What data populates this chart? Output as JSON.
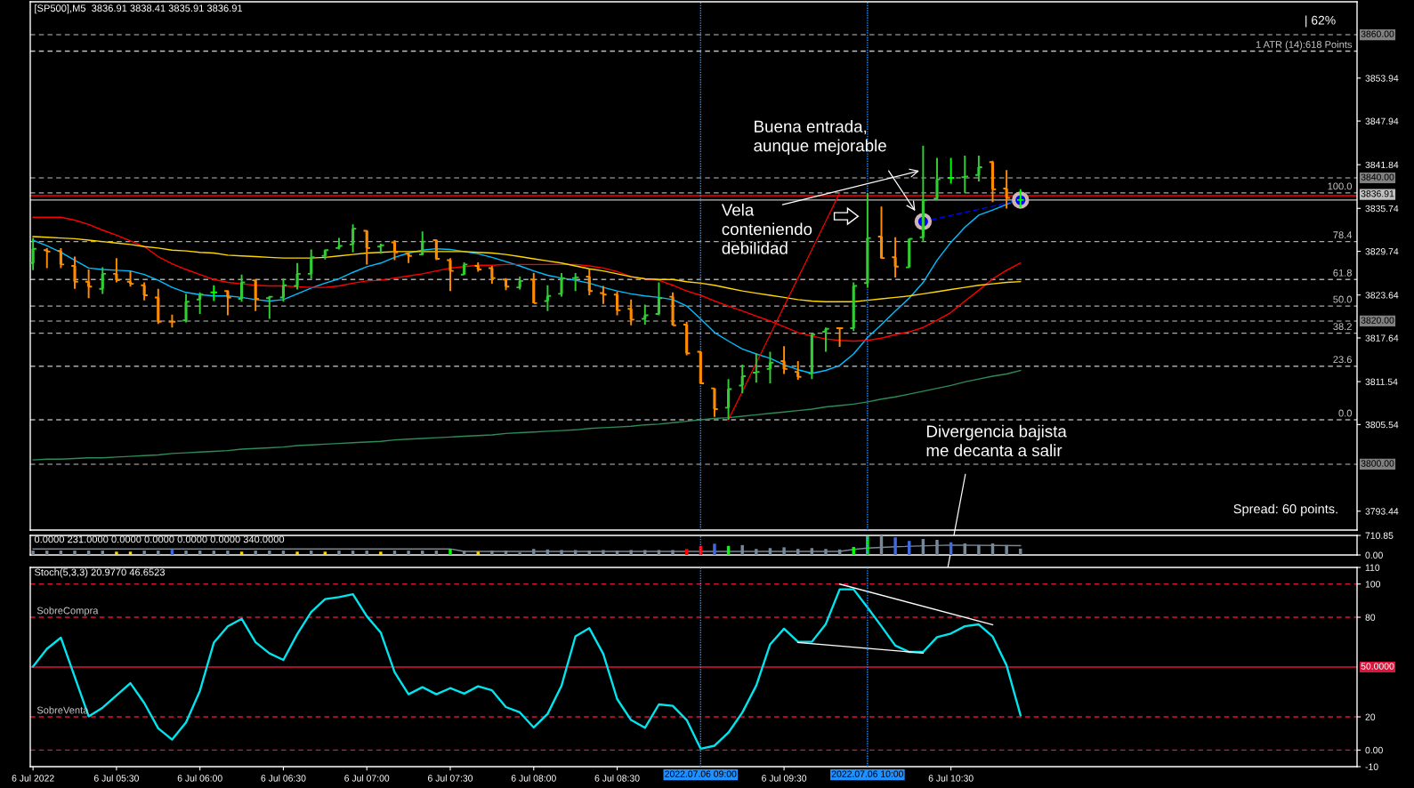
{
  "chart_data": [
    {
      "type": "candlestick",
      "title": "[SP500],M5  3836.91 3838.41 3835.91 3836.91",
      "x": [
        "2022-07-06T05:00",
        "2022-07-06T05:05",
        "2022-07-06T05:10",
        "2022-07-06T05:15",
        "2022-07-06T05:20",
        "2022-07-06T05:25",
        "2022-07-06T05:30",
        "2022-07-06T05:35",
        "2022-07-06T05:40",
        "2022-07-06T05:45",
        "2022-07-06T05:50",
        "2022-07-06T05:55",
        "2022-07-06T06:00",
        "2022-07-06T06:05",
        "2022-07-06T06:10",
        "2022-07-06T06:15",
        "2022-07-06T06:20",
        "2022-07-06T06:25",
        "2022-07-06T06:30",
        "2022-07-06T06:35",
        "2022-07-06T06:40",
        "2022-07-06T06:45",
        "2022-07-06T06:50",
        "2022-07-06T06:55",
        "2022-07-06T07:00",
        "2022-07-06T07:05",
        "2022-07-06T07:10",
        "2022-07-06T07:15",
        "2022-07-06T07:20",
        "2022-07-06T07:25",
        "2022-07-06T07:30",
        "2022-07-06T07:35",
        "2022-07-06T07:40",
        "2022-07-06T07:45",
        "2022-07-06T07:50",
        "2022-07-06T07:55",
        "2022-07-06T08:00",
        "2022-07-06T08:05",
        "2022-07-06T08:10",
        "2022-07-06T08:15",
        "2022-07-06T08:20",
        "2022-07-06T08:25",
        "2022-07-06T08:30",
        "2022-07-06T08:35",
        "2022-07-06T08:40",
        "2022-07-06T08:45",
        "2022-07-06T08:50",
        "2022-07-06T08:55",
        "2022-07-06T09:00",
        "2022-07-06T09:05",
        "2022-07-06T09:10",
        "2022-07-06T09:15",
        "2022-07-06T09:20",
        "2022-07-06T09:25",
        "2022-07-06T09:30",
        "2022-07-06T09:35",
        "2022-07-06T09:40",
        "2022-07-06T09:45",
        "2022-07-06T09:50",
        "2022-07-06T09:55",
        "2022-07-06T10:00",
        "2022-07-06T10:05",
        "2022-07-06T10:10",
        "2022-07-06T10:15",
        "2022-07-06T10:20",
        "2022-07-06T10:25",
        "2022-07-06T10:30",
        "2022-07-06T10:35",
        "2022-07-06T10:40",
        "2022-07-06T10:45",
        "2022-07-06T10:50",
        "2022-07-06T10:55"
      ],
      "ohlc": [
        [
          3828.1,
          3831.6,
          3827.1,
          3830.1
        ],
        [
          3829.9,
          3830.2,
          3827.4,
          3829.7
        ],
        [
          3829.8,
          3830.2,
          3827.4,
          3827.9
        ],
        [
          3827.7,
          3829.0,
          3824.5,
          3825.5
        ],
        [
          3825.5,
          3827.2,
          3823.2,
          3824.8
        ],
        [
          3824.5,
          3827.5,
          3823.8,
          3826.6
        ],
        [
          3826.6,
          3828.8,
          3825.4,
          3825.7
        ],
        [
          3825.5,
          3827.0,
          3824.8,
          3825.2
        ],
        [
          3825.0,
          3825.4,
          3822.9,
          3823.6
        ],
        [
          3823.3,
          3824.5,
          3819.6,
          3819.9
        ],
        [
          3819.9,
          3820.9,
          3819.1,
          3819.9
        ],
        [
          3820.1,
          3823.8,
          3819.8,
          3822.7
        ],
        [
          3823.0,
          3824.0,
          3821.0,
          3823.7
        ],
        [
          3824.0,
          3825.0,
          3822.8,
          3824.0
        ],
        [
          3824.2,
          3824.3,
          3820.8,
          3823.3
        ],
        [
          3823.1,
          3826.5,
          3822.7,
          3825.4
        ],
        [
          3825.7,
          3825.7,
          3821.4,
          3823.1
        ],
        [
          3823.2,
          3823.5,
          3820.3,
          3823.4
        ],
        [
          3823.3,
          3825.9,
          3822.7,
          3825.0
        ],
        [
          3824.9,
          3828.1,
          3824.4,
          3826.6
        ],
        [
          3826.6,
          3830.0,
          3825.9,
          3828.9
        ],
        [
          3829.1,
          3830.0,
          3828.6,
          3829.9
        ],
        [
          3830.2,
          3831.6,
          3830.0,
          3830.5
        ],
        [
          3830.7,
          3833.5,
          3829.6,
          3832.9
        ],
        [
          3832.6,
          3832.7,
          3827.9,
          3830.2
        ],
        [
          3830.4,
          3830.8,
          3829.4,
          3830.6
        ],
        [
          3831.0,
          3831.3,
          3828.5,
          3829.6
        ],
        [
          3829.4,
          3829.6,
          3828.1,
          3829.1
        ],
        [
          3829.3,
          3832.5,
          3829.2,
          3831.1
        ],
        [
          3831.3,
          3831.4,
          3828.5,
          3828.7
        ],
        [
          3828.5,
          3828.8,
          3824.2,
          3827.0
        ],
        [
          3826.5,
          3828.2,
          3826.5,
          3827.9
        ],
        [
          3827.7,
          3828.2,
          3826.9,
          3827.2
        ],
        [
          3827.4,
          3827.7,
          3825.2,
          3826.0
        ],
        [
          3825.8,
          3826.0,
          3824.3,
          3824.8
        ],
        [
          3824.7,
          3826.2,
          3824.4,
          3825.6
        ],
        [
          3825.8,
          3826.7,
          3822.5,
          3822.5
        ],
        [
          3822.8,
          3825.0,
          3821.4,
          3823.5
        ],
        [
          3823.8,
          3826.7,
          3823.4,
          3826.0
        ],
        [
          3826.0,
          3826.7,
          3824.2,
          3826.1
        ],
        [
          3826.2,
          3827.2,
          3823.6,
          3824.2
        ],
        [
          3823.9,
          3824.9,
          3822.4,
          3823.7
        ],
        [
          3823.7,
          3824.1,
          3820.8,
          3821.5
        ],
        [
          3821.7,
          3823.0,
          3819.4,
          3820.2
        ],
        [
          3820.3,
          3822.3,
          3819.5,
          3820.8
        ],
        [
          3821.0,
          3825.4,
          3820.8,
          3823.2
        ],
        [
          3823.4,
          3824.0,
          3819.4,
          3819.4
        ],
        [
          3819.5,
          3819.9,
          3815.2,
          3815.5
        ],
        [
          3815.7,
          3815.8,
          3811.2,
          3811.3
        ],
        [
          3810.6,
          3810.6,
          3806.6,
          3807.7
        ],
        [
          3807.9,
          3811.9,
          3806.2,
          3810.5
        ],
        [
          3811.0,
          3813.9,
          3809.9,
          3812.3
        ],
        [
          3812.8,
          3815.5,
          3811.4,
          3812.9
        ],
        [
          3813.3,
          3815.7,
          3811.3,
          3814.2
        ],
        [
          3814.4,
          3816.5,
          3812.6,
          3813.3
        ],
        [
          3812.9,
          3814.4,
          3811.8,
          3812.2
        ],
        [
          3812.7,
          3818.3,
          3811.9,
          3818.1
        ],
        [
          3818.5,
          3819.1,
          3815.7,
          3818.9
        ],
        [
          3819.0,
          3819.0,
          3816.4,
          3819.0
        ],
        [
          3819.0,
          3825.4,
          3818.6,
          3824.9
        ],
        [
          3825.3,
          3837.9,
          3824.7,
          3831.6
        ],
        [
          3831.8,
          3836.0,
          3828.7,
          3828.8
        ],
        [
          3828.9,
          3831.7,
          3826.1,
          3827.6
        ],
        [
          3827.5,
          3831.5,
          3827.5,
          3831.5
        ],
        [
          3831.7,
          3844.5,
          3831.1,
          3836.9
        ],
        [
          3837.1,
          3842.8,
          3836.9,
          3839.8
        ],
        [
          3840.0,
          3842.8,
          3839.2,
          3840.0
        ],
        [
          3840.1,
          3843.1,
          3837.9,
          3840.2
        ],
        [
          3840.4,
          3843.1,
          3839.5,
          3841.5
        ],
        [
          3842.2,
          3842.4,
          3836.6,
          3838.4
        ],
        [
          3838.5,
          3841.1,
          3835.7,
          3837.2
        ],
        [
          3836.91,
          3838.41,
          3835.91,
          3836.91
        ]
      ],
      "colors": [
        "#32cd32",
        "#ff8c00",
        "#ff8c00",
        "#ff8c00",
        "#ff8c00",
        "#32cd32",
        "#ff8c00",
        "#ff8c00",
        "#ff8c00",
        "#ff8c00",
        "#ff8c00",
        "#32cd32",
        "#32cd32",
        "#00ff00",
        "#ff8c00",
        "#32cd32",
        "#ff8c00",
        "#32cd32",
        "#32cd32",
        "#32cd32",
        "#32cd32",
        "#32cd32",
        "#32cd32",
        "#32cd32",
        "#ff8c00",
        "#32cd32",
        "#ff8c00",
        "#ff8c00",
        "#32cd32",
        "#ff8c00",
        "#ff8c00",
        "#32cd32",
        "#ff8c00",
        "#ff8c00",
        "#ff8c00",
        "#32cd32",
        "#ff8c00",
        "#32cd32",
        "#32cd32",
        "#32cd32",
        "#ff8c00",
        "#ff8c00",
        "#ff8c00",
        "#ff8c00",
        "#32cd32",
        "#32cd32",
        "#ff8c00",
        "#ff8c00",
        "#ff8c00",
        "#ff8c00",
        "#32cd32",
        "#32cd32",
        "#32cd32",
        "#32cd32",
        "#ff8c00",
        "#ff8c00",
        "#32cd32",
        "#32cd32",
        "#ff8c00",
        "#32cd32",
        "#32cd32",
        "#ff8c00",
        "#ff8c00",
        "#32cd32",
        "#32cd32",
        "#32cd32",
        "#00ff00",
        "#32cd32",
        "#32cd32",
        "#ff8c00",
        "#ff8c00",
        "#00ff00"
      ],
      "series": [
        {
          "type": "line",
          "color": "#00bfff",
          "values": [
            3831.3,
            3830.5,
            3829.6,
            3828.5,
            3827.4,
            3827.2,
            3827.1,
            3827.0,
            3826.5,
            3825.7,
            3824.7,
            3824.0,
            3823.7,
            3823.5,
            3823.5,
            3823.3,
            3823.0,
            3822.8,
            3823.0,
            3823.8,
            3824.6,
            3825.3,
            3825.9,
            3826.8,
            3827.6,
            3828.1,
            3828.9,
            3829.5,
            3829.9,
            3830.1,
            3830.0,
            3829.7,
            3829.4,
            3828.9,
            3828.3,
            3827.7,
            3827.0,
            3826.4,
            3826.0,
            3825.7,
            3825.3,
            3824.7,
            3824.2,
            3823.8,
            3823.5,
            3823.3,
            3823.0,
            3822.1,
            3820.3,
            3818.4,
            3817.2,
            3816.1,
            3815.4,
            3814.8,
            3813.9,
            3813.2,
            3812.7,
            3813.1,
            3813.8,
            3815.4,
            3817.7,
            3819.5,
            3821.4,
            3823.2,
            3825.4,
            3828.5,
            3831.0,
            3833.1,
            3834.8,
            3835.5,
            3836.3,
            3837.2
          ]
        },
        {
          "type": "line",
          "color": "#ff0000",
          "values": [
            3834.5,
            3834.5,
            3834.5,
            3834.1,
            3833.5,
            3832.7,
            3832.0,
            3831.2,
            3830.4,
            3829.0,
            3828.0,
            3827.2,
            3826.5,
            3825.8,
            3825.4,
            3825.2,
            3825.0,
            3824.9,
            3824.9,
            3824.8,
            3824.7,
            3824.7,
            3824.9,
            3825.3,
            3825.6,
            3825.7,
            3826.0,
            3826.3,
            3826.6,
            3827.0,
            3827.4,
            3827.6,
            3827.8,
            3827.8,
            3827.9,
            3827.9,
            3827.9,
            3827.9,
            3827.9,
            3827.9,
            3827.7,
            3827.4,
            3826.9,
            3826.2,
            3825.9,
            3825.7,
            3825.0,
            3824.2,
            3823.6,
            3822.8,
            3822.1,
            3821.4,
            3820.7,
            3820.0,
            3819.2,
            3818.4,
            3817.9,
            3817.5,
            3817.3,
            3817.2,
            3817.3,
            3817.6,
            3818.1,
            3818.5,
            3819.1,
            3820.1,
            3821.2,
            3822.8,
            3824.3,
            3825.9,
            3827.1,
            3828.1
          ]
        },
        {
          "type": "line",
          "color": "#ffd700",
          "values": [
            3831.8,
            3831.7,
            3831.6,
            3831.5,
            3831.3,
            3831.1,
            3830.9,
            3830.7,
            3830.4,
            3830.2,
            3829.9,
            3829.8,
            3829.6,
            3829.5,
            3829.2,
            3829.1,
            3829.0,
            3828.9,
            3828.8,
            3828.8,
            3828.8,
            3828.9,
            3829.1,
            3829.3,
            3829.5,
            3829.6,
            3829.7,
            3829.7,
            3829.7,
            3829.7,
            3829.7,
            3829.7,
            3829.6,
            3829.5,
            3829.3,
            3829.0,
            3828.7,
            3828.4,
            3828.1,
            3827.7,
            3827.3,
            3827.0,
            3826.6,
            3826.2,
            3825.9,
            3825.8,
            3825.8,
            3825.5,
            3825.3,
            3825.0,
            3824.6,
            3824.2,
            3823.9,
            3823.6,
            3823.3,
            3823.0,
            3822.8,
            3822.7,
            3822.7,
            3822.7,
            3822.9,
            3823.1,
            3823.3,
            3823.5,
            3823.8,
            3824.1,
            3824.4,
            3824.7,
            3825.0,
            3825.2,
            3825.4,
            3825.5
          ]
        },
        {
          "type": "line",
          "color": "#2e8b57",
          "values": [
            3800.6,
            3800.7,
            3800.7,
            3800.8,
            3800.9,
            3800.9,
            3801.0,
            3801.1,
            3801.2,
            3801.3,
            3801.5,
            3801.6,
            3801.7,
            3801.8,
            3801.9,
            3802.1,
            3802.2,
            3802.3,
            3802.4,
            3802.6,
            3802.7,
            3802.8,
            3802.9,
            3803.0,
            3803.1,
            3803.2,
            3803.4,
            3803.5,
            3803.6,
            3803.7,
            3803.8,
            3803.9,
            3804.0,
            3804.1,
            3804.3,
            3804.4,
            3804.5,
            3804.6,
            3804.7,
            3804.8,
            3805.0,
            3805.1,
            3805.2,
            3805.3,
            3805.5,
            3805.6,
            3805.8,
            3806.0,
            3806.2,
            3806.4,
            3806.5,
            3806.7,
            3806.9,
            3807.1,
            3807.3,
            3807.5,
            3807.7,
            3808.0,
            3808.2,
            3808.4,
            3808.7,
            3809.1,
            3809.4,
            3809.8,
            3810.2,
            3810.6,
            3811.0,
            3811.5,
            3811.9,
            3812.3,
            3812.6,
            3813.1
          ]
        },
        {
          "type": "line",
          "color": "#ff0000",
          "line_style": "dotted",
          "x": [
            "2022-07-06T09:10",
            "2022-07-06T09:50"
          ],
          "values": [
            3806.2,
            3837.9
          ]
        },
        {
          "type": "line",
          "color": "#0000ff",
          "line_style": "dashed",
          "marker": "circle",
          "x": [
            "2022-07-06T10:20",
            "2022-07-06T10:55"
          ],
          "values": [
            3833.9,
            3836.9
          ]
        }
      ],
      "xlim": [
        "2022-07-06T04:59",
        "2022-07-06T12:56"
      ],
      "ylim": [
        3790.8,
        3864.6
      ],
      "yticks": [
        3793.44,
        3805.54,
        3811.54,
        3817.64,
        3823.64,
        3829.74,
        3835.74,
        3841.84,
        3847.94,
        3853.94
      ],
      "ref_lines": [
        {
          "axis": "y",
          "value": 3860,
          "label": "3860.00",
          "color": "#808080",
          "line_style": "dashed"
        },
        {
          "axis": "y",
          "value": 3840,
          "label": "3840.00",
          "color": "#808080",
          "line_style": "dashed"
        },
        {
          "axis": "y",
          "value": 3820,
          "label": "3820.00",
          "color": "#808080",
          "line_style": "dashed"
        },
        {
          "axis": "y",
          "value": 3800,
          "label": "3800.00",
          "color": "#808080",
          "line_style": "dashed"
        },
        {
          "axis": "y",
          "value": 3857.7,
          "color": "#c0c0c0",
          "line_style": "dashed"
        },
        {
          "axis": "y",
          "value": 3837.51,
          "color": "#ff0000",
          "line_style": "solid"
        },
        {
          "axis": "y",
          "value": 3836.91,
          "label": "3836.91",
          "color": "#c0c0c0",
          "line_style": "solid"
        },
        {
          "axis": "y",
          "value": 3837.9,
          "color": "#a9a9a9",
          "line_style": "dashed"
        },
        {
          "axis": "y",
          "value": 3831.1,
          "color": "#a9a9a9",
          "line_style": "dashed"
        },
        {
          "axis": "y",
          "value": 3825.8,
          "color": "#a9a9a9",
          "line_style": "dashed"
        },
        {
          "axis": "y",
          "value": 3822.1,
          "color": "#a9a9a9",
          "line_style": "dashed"
        },
        {
          "axis": "y",
          "value": 3818.3,
          "color": "#a9a9a9",
          "line_style": "dashed"
        },
        {
          "axis": "y",
          "value": 3813.7,
          "color": "#a9a9a9",
          "line_style": "dashed"
        },
        {
          "axis": "y",
          "value": 3806.2,
          "color": "#a9a9a9",
          "line_style": "dashed"
        },
        {
          "axis": "x",
          "value": "2022-07-06T09:00",
          "color": "#1e90ff",
          "line_style": "dotted"
        },
        {
          "axis": "x",
          "value": "2022-07-06T10:00",
          "color": "#1e90ff",
          "line_style": "dotted"
        }
      ],
      "annotations": [
        "| 62%",
        "Spread: 60 points.",
        "Buena entrada,\naunque mejorable",
        "Vela\nconteniendo\ndebilidad",
        "Divergencia bajista\nme decanta a salir",
        {
          "text": "1 ATR (14):618 Points",
          "x": "2022-07-06T12:56",
          "y": 3857.7
        },
        {
          "text": "100.0",
          "x": "2022-07-06T12:56",
          "y": 3837.9
        },
        {
          "text": "78.4",
          "x": "2022-07-06T12:56",
          "y": 3831.1
        },
        {
          "text": "61.8",
          "x": "2022-07-06T12:56",
          "y": 3825.8
        },
        {
          "text": "50.0",
          "x": "2022-07-06T12:56",
          "y": 3822.1
        },
        {
          "text": "38.2",
          "x": "2022-07-06T12:56",
          "y": 3818.3
        },
        {
          "text": "23.6",
          "x": "2022-07-06T12:56",
          "y": 3813.7
        },
        {
          "text": "0.0",
          "x": "2022-07-06T12:56",
          "y": 3806.2
        }
      ]
    },
    {
      "type": "bar",
      "title": "0.0000 231.0000 0.0000 0.0000 0.0000 0.0000 340.0000",
      "x": [
        "2022-07-06T05:00",
        "2022-07-06T05:05",
        "2022-07-06T05:10",
        "2022-07-06T05:15",
        "2022-07-06T05:20",
        "2022-07-06T05:25",
        "2022-07-06T05:30",
        "2022-07-06T05:35",
        "2022-07-06T05:40",
        "2022-07-06T05:45",
        "2022-07-06T05:50",
        "2022-07-06T05:55",
        "2022-07-06T06:00",
        "2022-07-06T06:05",
        "2022-07-06T06:10",
        "2022-07-06T06:15",
        "2022-07-06T06:20",
        "2022-07-06T06:25",
        "2022-07-06T06:30",
        "2022-07-06T06:35",
        "2022-07-06T06:40",
        "2022-07-06T06:45",
        "2022-07-06T06:50",
        "2022-07-06T06:55",
        "2022-07-06T07:00",
        "2022-07-06T07:05",
        "2022-07-06T07:10",
        "2022-07-06T07:15",
        "2022-07-06T07:20",
        "2022-07-06T07:25",
        "2022-07-06T07:30",
        "2022-07-06T07:35",
        "2022-07-06T07:40",
        "2022-07-06T07:45",
        "2022-07-06T07:50",
        "2022-07-06T07:55",
        "2022-07-06T08:00",
        "2022-07-06T08:05",
        "2022-07-06T08:10",
        "2022-07-06T08:15",
        "2022-07-06T08:20",
        "2022-07-06T08:25",
        "2022-07-06T08:30",
        "2022-07-06T08:35",
        "2022-07-06T08:40",
        "2022-07-06T08:45",
        "2022-07-06T08:50",
        "2022-07-06T08:55",
        "2022-07-06T09:00",
        "2022-07-06T09:05",
        "2022-07-06T09:10",
        "2022-07-06T09:15",
        "2022-07-06T09:20",
        "2022-07-06T09:25",
        "2022-07-06T09:30",
        "2022-07-06T09:35",
        "2022-07-06T09:40",
        "2022-07-06T09:45",
        "2022-07-06T09:50",
        "2022-07-06T09:55",
        "2022-07-06T10:00",
        "2022-07-06T10:05",
        "2022-07-06T10:10",
        "2022-07-06T10:15",
        "2022-07-06T10:20",
        "2022-07-06T10:25",
        "2022-07-06T10:30",
        "2022-07-06T10:35",
        "2022-07-06T10:40",
        "2022-07-06T10:45",
        "2022-07-06T10:50",
        "2022-07-06T10:55"
      ],
      "series": [
        {
          "values": [
            160,
            160,
            160,
            160,
            160,
            160,
            120,
            120,
            160,
            160,
            190,
            160,
            160,
            160,
            160,
            120,
            160,
            160,
            160,
            120,
            160,
            120,
            160,
            160,
            160,
            120,
            160,
            160,
            160,
            160,
            220,
            160,
            120,
            160,
            160,
            90,
            220,
            200,
            180,
            180,
            160,
            180,
            160,
            180,
            180,
            180,
            180,
            220,
            330,
            410,
            330,
            360,
            220,
            250,
            280,
            220,
            250,
            220,
            200,
            290,
            680,
            710.85,
            640,
            510,
            580,
            550,
            460,
            420,
            360,
            420,
            360,
            231
          ],
          "colors": [
            "#778899",
            "#778899",
            "#778899",
            "#778899",
            "#778899",
            "#778899",
            "#ffd700",
            "#ffd700",
            "#778899",
            "#778899",
            "#4169e1",
            "#778899",
            "#778899",
            "#778899",
            "#778899",
            "#ffd700",
            "#778899",
            "#778899",
            "#778899",
            "#ffd700",
            "#778899",
            "#ffd700",
            "#778899",
            "#778899",
            "#778899",
            "#ffd700",
            "#778899",
            "#778899",
            "#778899",
            "#778899",
            "#00ff00",
            "#778899",
            "#ffd700",
            "#778899",
            "#778899",
            "#778899",
            "#778899",
            "#778899",
            "#778899",
            "#778899",
            "#778899",
            "#778899",
            "#778899",
            "#778899",
            "#778899",
            "#778899",
            "#778899",
            "#ff0000",
            "#ff0000",
            "#4169e1",
            "#00ff00",
            "#778899",
            "#778899",
            "#778899",
            "#778899",
            "#778899",
            "#778899",
            "#778899",
            "#778899",
            "#00ff00",
            "#00ff00",
            "#778899",
            "#4169e1",
            "#4169e1",
            "#778899",
            "#778899",
            "#4169e1",
            "#778899",
            "#778899",
            "#778899",
            "#778899",
            "#778899"
          ]
        },
        {
          "type": "line",
          "color": "#778899",
          "x": [
            "2022-07-06T05:00",
            "2022-07-06T07:30",
            "2022-07-06T07:35",
            "2022-07-06T09:50",
            "2022-07-06T09:55",
            "2022-07-06T10:00",
            "2022-07-06T10:10",
            "2022-07-06T10:30",
            "2022-07-06T10:55"
          ],
          "values": [
            220,
            220,
            130,
            130,
            200,
            250,
            300,
            360,
            340
          ]
        }
      ],
      "xlim": [
        "2022-07-06T04:59",
        "2022-07-06T12:56"
      ],
      "ylim": [
        0,
        710.85
      ],
      "yticks": [
        {
          "value": 0,
          "label": "0.00"
        },
        710.85
      ],
      "ref_lines": [
        {
          "axis": "x",
          "value": "2022-07-06T09:00",
          "color": "#1e90ff",
          "line_style": "dotted"
        },
        {
          "axis": "x",
          "value": "2022-07-06T10:00",
          "color": "#1e90ff",
          "line_style": "dotted"
        }
      ]
    },
    {
      "type": "line",
      "title": "Stoch(5,3,3) 20.9770 46.6523",
      "x": [
        "2022-07-06T05:00",
        "2022-07-06T05:05",
        "2022-07-06T05:10",
        "2022-07-06T05:15",
        "2022-07-06T05:20",
        "2022-07-06T05:25",
        "2022-07-06T05:30",
        "2022-07-06T05:35",
        "2022-07-06T05:40",
        "2022-07-06T05:45",
        "2022-07-06T05:50",
        "2022-07-06T05:55",
        "2022-07-06T06:00",
        "2022-07-06T06:05",
        "2022-07-06T06:10",
        "2022-07-06T06:15",
        "2022-07-06T06:20",
        "2022-07-06T06:25",
        "2022-07-06T06:30",
        "2022-07-06T06:35",
        "2022-07-06T06:40",
        "2022-07-06T06:45",
        "2022-07-06T06:50",
        "2022-07-06T06:55",
        "2022-07-06T07:00",
        "2022-07-06T07:05",
        "2022-07-06T07:10",
        "2022-07-06T07:15",
        "2022-07-06T07:20",
        "2022-07-06T07:25",
        "2022-07-06T07:30",
        "2022-07-06T07:35",
        "2022-07-06T07:40",
        "2022-07-06T07:45",
        "2022-07-06T07:50",
        "2022-07-06T07:55",
        "2022-07-06T08:00",
        "2022-07-06T08:05",
        "2022-07-06T08:10",
        "2022-07-06T08:15",
        "2022-07-06T08:20",
        "2022-07-06T08:25",
        "2022-07-06T08:30",
        "2022-07-06T08:35",
        "2022-07-06T08:40",
        "2022-07-06T08:45",
        "2022-07-06T08:50",
        "2022-07-06T08:55",
        "2022-07-06T09:00",
        "2022-07-06T09:05",
        "2022-07-06T09:10",
        "2022-07-06T09:15",
        "2022-07-06T09:20",
        "2022-07-06T09:25",
        "2022-07-06T09:30",
        "2022-07-06T09:35",
        "2022-07-06T09:40",
        "2022-07-06T09:45",
        "2022-07-06T09:50",
        "2022-07-06T09:55",
        "2022-07-06T10:00",
        "2022-07-06T10:05",
        "2022-07-06T10:10",
        "2022-07-06T10:15",
        "2022-07-06T10:20",
        "2022-07-06T10:25",
        "2022-07-06T10:30",
        "2022-07-06T10:35",
        "2022-07-06T10:40",
        "2022-07-06T10:45",
        "2022-07-06T10:50",
        "2022-07-06T10:55"
      ],
      "series": [
        {
          "color": "#00e5ee",
          "values": [
            50.3,
            61.0,
            67.7,
            44.0,
            20.3,
            25.5,
            32.9,
            40.3,
            28.3,
            13.1,
            6.3,
            16.6,
            35.7,
            64.7,
            74.5,
            79.1,
            64.9,
            58.2,
            54.3,
            69.9,
            83.2,
            90.9,
            92.1,
            93.9,
            80.6,
            70.8,
            46.8,
            33.6,
            37.9,
            33.6,
            37.3,
            34.0,
            38.4,
            36.0,
            25.9,
            22.7,
            13.6,
            21.8,
            38.8,
            68.5,
            73.4,
            58.0,
            30.7,
            18.1,
            13.4,
            27.5,
            26.6,
            18.1,
            0.8,
            2.6,
            10.5,
            22.6,
            38.8,
            63.7,
            73.1,
            65.2,
            65.2,
            75.9,
            96.8,
            96.8,
            85.9,
            74.6,
            62.9,
            59.1,
            59.1,
            68.0,
            70.2,
            74.6,
            75.7,
            68.4,
            51.0,
            21.0
          ]
        },
        {
          "color": "#ffffff",
          "x": [
            "2022-07-06T09:50",
            "2022-07-06T10:45"
          ],
          "values": [
            100,
            75.5
          ]
        },
        {
          "color": "#ffffff",
          "x": [
            "2022-07-06T09:35",
            "2022-07-06T10:20"
          ],
          "values": [
            64.8,
            58.4
          ]
        }
      ],
      "xlim": [
        "2022-07-06T04:59",
        "2022-07-06T12:56"
      ],
      "ylim": [
        -10,
        110
      ],
      "yticks": [
        -10,
        {
          "value": 0,
          "label": "0.00"
        },
        20,
        80,
        100,
        110
      ],
      "xticks": [
        {
          "value": "2022-07-06T05:00",
          "label": "6 Jul 2022"
        },
        {
          "value": "2022-07-06T05:30",
          "label": "6 Jul 05:30"
        },
        {
          "value": "2022-07-06T06:00",
          "label": "6 Jul 06:00"
        },
        {
          "value": "2022-07-06T06:30",
          "label": "6 Jul 06:30"
        },
        {
          "value": "2022-07-06T07:00",
          "label": "6 Jul 07:00"
        },
        {
          "value": "2022-07-06T07:30",
          "label": "6 Jul 07:30"
        },
        {
          "value": "2022-07-06T08:00",
          "label": "6 Jul 08:00"
        },
        {
          "value": "2022-07-06T08:30",
          "label": "6 Jul 08:30"
        },
        {
          "value": "2022-07-06T09:30",
          "label": "6 Jul 09:30"
        },
        {
          "value": "2022-07-06T10:30",
          "label": "6 Jul 10:30"
        }
      ],
      "ref_lines": [
        {
          "axis": "y",
          "value": 100,
          "color": "#dc143c",
          "line_style": "dashed"
        },
        {
          "axis": "y",
          "value": 80,
          "color": "#dc143c",
          "line_style": "dashed"
        },
        {
          "axis": "y",
          "value": 50,
          "label": "50.0000",
          "color": "#dc143c",
          "line_style": "solid"
        },
        {
          "axis": "y",
          "value": 20,
          "color": "#dc143c",
          "line_style": "dashed"
        },
        {
          "axis": "y",
          "value": 0,
          "color": "#dc143c",
          "line_style": "dashed"
        },
        {
          "axis": "x",
          "value": "2022-07-06T09:00",
          "label": "2022.07.06 09:00",
          "color": "#1e90ff",
          "line_style": "dotted"
        },
        {
          "axis": "x",
          "value": "2022-07-06T10:00",
          "label": "2022.07.06 10:00",
          "color": "#1e90ff",
          "line_style": "dotted"
        }
      ],
      "annotations": [
        {
          "text": "SobreCompra",
          "x": "2022-07-06T05:00",
          "y": 80
        },
        {
          "text": "SobreVenta",
          "x": "2022-07-06T05:00",
          "y": 20
        }
      ]
    }
  ]
}
